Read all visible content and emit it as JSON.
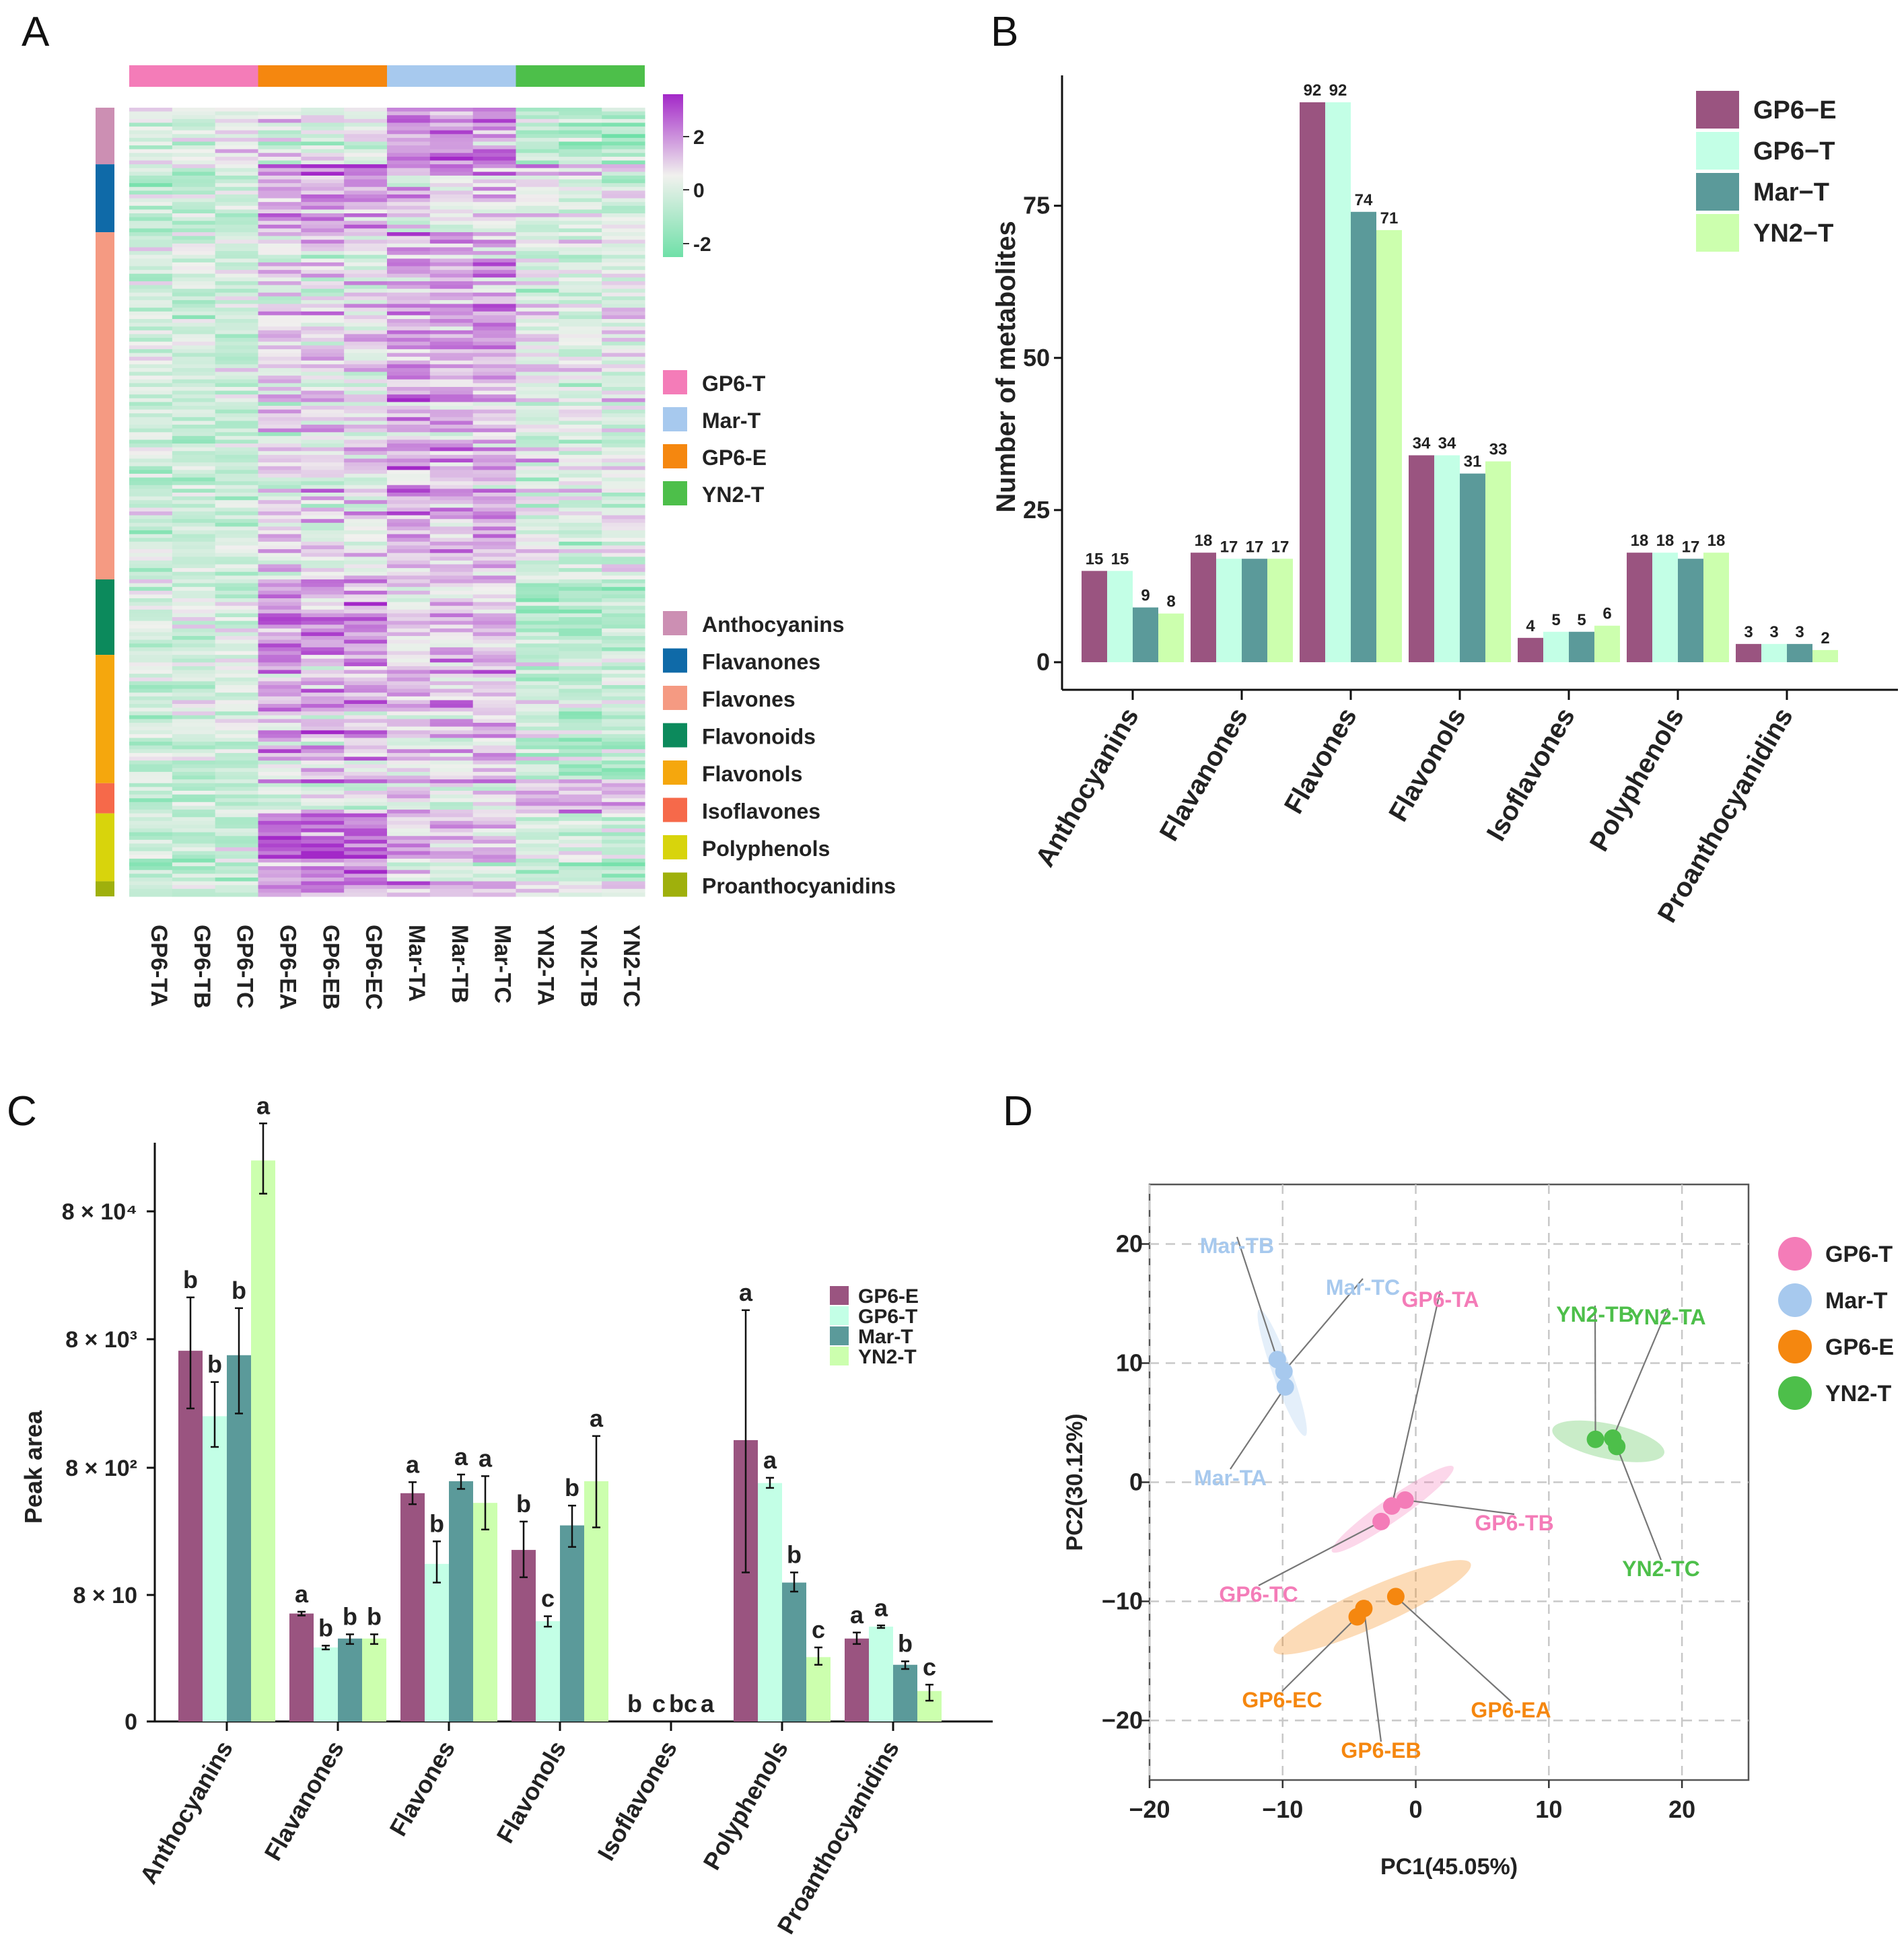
{
  "panel_labels": [
    "A",
    "B",
    "C",
    "D"
  ],
  "chart_data": [
    {
      "panel": "A",
      "type": "heatmap",
      "columns": [
        "GP6-TA",
        "GP6-TB",
        "GP6-TC",
        "GP6-EA",
        "GP6-EB",
        "GP6-EC",
        "Mar-TA",
        "Mar-TB",
        "Mar-TC",
        "YN2-TA",
        "YN2-TB",
        "YN2-TC"
      ],
      "column_groups": [
        {
          "name": "GP6-T",
          "color": "#f47cb8",
          "cols": 3
        },
        {
          "name": "GP6-E",
          "color": "#f5870f",
          "cols": 3
        },
        {
          "name": "Mar-T",
          "color": "#a7c9ee",
          "cols": 3
        },
        {
          "name": "YN2-T",
          "color": "#4dbf4a",
          "cols": 3
        }
      ],
      "colorbar": {
        "ticks": [
          "2",
          "0",
          "-2"
        ],
        "range": [
          -3,
          3
        ],
        "low_color": "#6fe0a8",
        "mid_color": "#f1f1ee",
        "high_color": "#a328c8"
      },
      "group_legend": [
        {
          "name": "GP6-T",
          "color": "#f47cb8"
        },
        {
          "name": "Mar-T",
          "color": "#a7c9ee"
        },
        {
          "name": "GP6-E",
          "color": "#f5870f"
        },
        {
          "name": "YN2-T",
          "color": "#4dbf4a"
        }
      ],
      "row_classes": [
        {
          "name": "Anthocyanins",
          "color": "#cc8fb3",
          "count": 15
        },
        {
          "name": "Flavanones",
          "color": "#0f6aa8",
          "count": 18
        },
        {
          "name": "Flavones",
          "color": "#f59a82",
          "count": 92
        },
        {
          "name": "Flavonoids",
          "color": "#0c8a5c",
          "count": 20
        },
        {
          "name": "Flavonols",
          "color": "#f5a70d",
          "count": 34
        },
        {
          "name": "Isoflavones",
          "color": "#f6694a",
          "count": 8
        },
        {
          "name": "Polyphenols",
          "color": "#d8d40c",
          "count": 18
        },
        {
          "name": "Proanthocyanidins",
          "color": "#9fb00c",
          "count": 4
        }
      ]
    },
    {
      "panel": "B",
      "type": "bar",
      "ylabel": "Number of metabolites",
      "ylim": [
        0,
        96
      ],
      "yticks": [
        0,
        25,
        50,
        75
      ],
      "categories": [
        "Anthocyanins",
        "Flavanones",
        "Flavones",
        "Flavonols",
        "Isoflavones",
        "Polyphenols",
        "Proanthocyanidins"
      ],
      "series": [
        {
          "name": "GP6−E",
          "color": "#9a5480",
          "values": [
            15,
            18,
            92,
            34,
            4,
            18,
            3
          ]
        },
        {
          "name": "GP6−T",
          "color": "#c3ffe6",
          "values": [
            15,
            17,
            92,
            34,
            5,
            18,
            3
          ]
        },
        {
          "name": "Mar−T",
          "color": "#5b9a9a",
          "values": [
            9,
            17,
            74,
            31,
            5,
            17,
            3
          ]
        },
        {
          "name": "YN2−T",
          "color": "#ccffae",
          "values": [
            8,
            17,
            71,
            33,
            6,
            18,
            2
          ]
        }
      ],
      "legend": "top-right"
    },
    {
      "panel": "C",
      "type": "bar",
      "ylabel": "Peak area",
      "yticks": [
        "0",
        "8 × 10",
        "8 × 10²",
        "8 × 10³",
        "8 × 10⁴"
      ],
      "ytick_values": [
        0,
        80,
        800,
        8000,
        80000
      ],
      "categories": [
        "Anthocyanins",
        "Flavanones",
        "Flavones",
        "Flavonols",
        "Isoflavones",
        "Polyphenols",
        "Proanthocyanidins"
      ],
      "series": [
        {
          "name": "GP6-E",
          "color": "#9a5480",
          "values": [
            6500,
            30,
            500,
            180,
            0.1,
            1300,
            8
          ],
          "error": [
            [
              2300,
              17000
            ],
            [
              27,
              33
            ],
            [
              410,
              610
            ],
            [
              110,
              300
            ],
            [
              0.1,
              0.1
            ],
            [
              120,
              13500
            ],
            [
              6,
              11
            ]
          ],
          "letters": [
            "b",
            "a",
            "a",
            "b",
            "b",
            "a",
            "a"
          ]
        },
        {
          "name": "GP6-T",
          "color": "#c3ffe6",
          "values": [
            2000,
            5,
            140,
            20,
            0.1,
            600,
            15
          ],
          "error": [
            [
              1150,
              3700
            ],
            [
              4.5,
              5.5
            ],
            [
              100,
              210
            ],
            [
              15,
              26
            ],
            [
              0.1,
              0.1
            ],
            [
              550,
              660
            ],
            [
              14,
              16
            ]
          ],
          "letters": [
            "b",
            "b",
            "b",
            "c",
            "c",
            "a",
            "a"
          ]
        },
        {
          "name": "Mar-T",
          "color": "#5b9a9a",
          "values": [
            6000,
            8,
            620,
            280,
            0.1,
            100,
            2
          ],
          "error": [
            [
              2100,
              14000
            ],
            [
              6,
              10
            ],
            [
              540,
              700
            ],
            [
              190,
              400
            ],
            [
              0.1,
              0.1
            ],
            [
              85,
              120
            ],
            [
              1.6,
              2.4
            ]
          ],
          "letters": [
            "b",
            "b",
            "a",
            "b",
            "bc",
            "b",
            "b"
          ]
        },
        {
          "name": "YN2-T",
          "color": "#ccffae",
          "values": [
            200000,
            8,
            420,
            620,
            0.1,
            3,
            0.5
          ],
          "error": [
            [
              110000,
              390000
            ],
            [
              6,
              10
            ],
            [
              260,
              680
            ],
            [
              270,
              1400
            ],
            [
              0.1,
              0.1
            ],
            [
              2,
              5
            ],
            [
              0.3,
              0.7
            ]
          ],
          "letters": [
            "a",
            "b",
            "a",
            "a",
            "a",
            "c",
            "c"
          ]
        }
      ],
      "legend": "right"
    },
    {
      "panel": "D",
      "type": "scatter",
      "xlabel": "PC1(45.05%)",
      "ylabel": "PC2(30.12%)",
      "xlim": [
        -20,
        25
      ],
      "ylim": [
        -25,
        25
      ],
      "xticks": [
        -20,
        -10,
        0,
        10,
        20
      ],
      "yticks": [
        -20,
        -10,
        0,
        10,
        20
      ],
      "xtick_labels": [
        "−20",
        "−10",
        "0",
        "10",
        "20"
      ],
      "ytick_labels": [
        "−20",
        "−10",
        "0",
        "10",
        "20"
      ],
      "grid": true,
      "legend": "right",
      "groups": [
        {
          "name": "GP6-T",
          "color": "#f47cb8",
          "points": [
            {
              "label": "GP6-TA",
              "x": -1.8,
              "y": -2.0
            },
            {
              "label": "GP6-TB",
              "x": -0.8,
              "y": -1.5
            },
            {
              "label": "GP6-TC",
              "x": -2.6,
              "y": -3.3
            }
          ]
        },
        {
          "name": "Mar-T",
          "color": "#a7c9ee",
          "points": [
            {
              "label": "Mar-TA",
              "x": -9.8,
              "y": 8.0
            },
            {
              "label": "Mar-TB",
              "x": -10.4,
              "y": 10.3
            },
            {
              "label": "Mar-TC",
              "x": -9.9,
              "y": 9.3
            }
          ]
        },
        {
          "name": "GP6-E",
          "color": "#f5870f",
          "points": [
            {
              "label": "GP6-EA",
              "x": -1.5,
              "y": -9.6
            },
            {
              "label": "GP6-EB",
              "x": -3.9,
              "y": -10.6
            },
            {
              "label": "GP6-EC",
              "x": -4.4,
              "y": -11.3
            }
          ]
        },
        {
          "name": "YN2-T",
          "color": "#4dbf4a",
          "points": [
            {
              "label": "YN2-TA",
              "x": 14.8,
              "y": 3.7
            },
            {
              "label": "YN2-TB",
              "x": 13.5,
              "y": 3.6
            },
            {
              "label": "YN2-TC",
              "x": 15.1,
              "y": 3.0
            }
          ]
        }
      ]
    }
  ]
}
